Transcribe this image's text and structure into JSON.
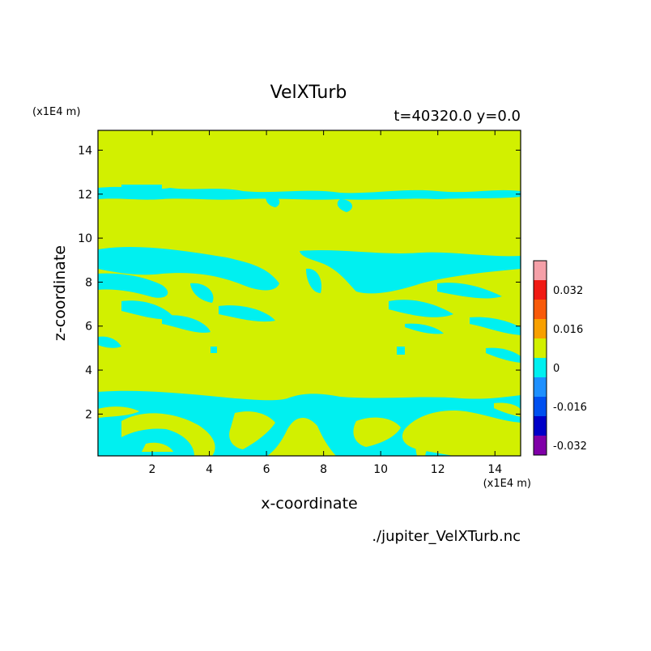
{
  "chart_data": {
    "type": "heatmap",
    "title": "VelXTurb",
    "subtitle": "t=40320.0 y=0.0",
    "xlabel": "x-coordinate",
    "ylabel": "z-coordinate",
    "x_scale_label": "(x1E4 m)",
    "y_scale_label": "(x1E4 m)",
    "source_file": "./jupiter_VelXTurb.nc",
    "xlim": [
      0.1,
      14.9
    ],
    "ylim": [
      0.1,
      14.9
    ],
    "xticks": [
      "2",
      "4",
      "6",
      "8",
      "10",
      "12",
      "14"
    ],
    "yticks": [
      "2",
      "4",
      "6",
      "8",
      "10",
      "12",
      "14"
    ],
    "colorbar": {
      "levels": [
        {
          "color": "#f5a0a8"
        },
        {
          "color": "#f01a14"
        },
        {
          "color": "#f85a0a"
        },
        {
          "color": "#f8a000"
        },
        {
          "color": "#d2f000"
        },
        {
          "color": "#00f0f0"
        },
        {
          "color": "#1e90ff"
        },
        {
          "color": "#0050f0"
        },
        {
          "color": "#0000c8"
        },
        {
          "color": "#8000a8"
        }
      ],
      "labels": [
        "0.032",
        "0.016",
        "0",
        "-0.016",
        "-0.032"
      ]
    },
    "field_colors": {
      "background": "#d2f000",
      "negative": "#00f0f0"
    }
  }
}
